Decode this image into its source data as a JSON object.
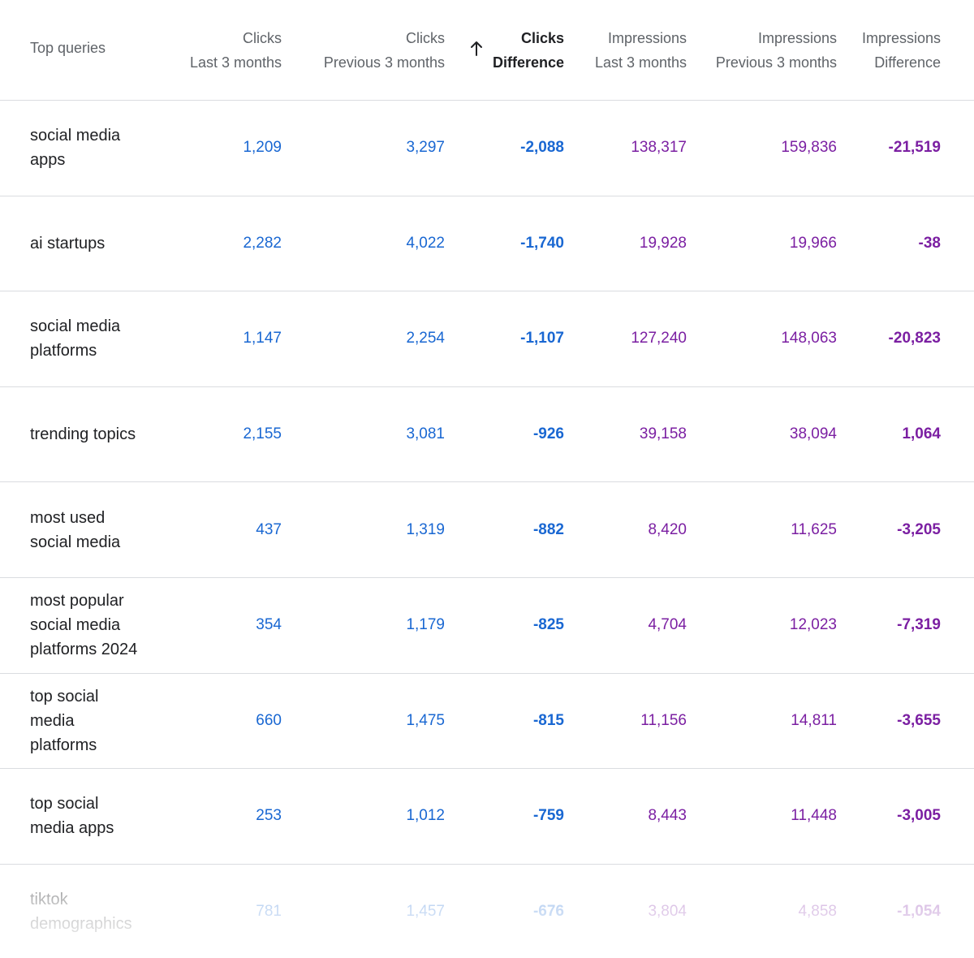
{
  "header": {
    "query": "Top queries",
    "clicks_last": [
      "Clicks",
      "Last 3 months"
    ],
    "clicks_prev": [
      "Clicks",
      "Previous 3 months"
    ],
    "clicks_diff": [
      "Clicks",
      "Difference"
    ],
    "impr_last": [
      "Impressions",
      "Last 3 months"
    ],
    "impr_prev": [
      "Impressions",
      "Previous 3 months"
    ],
    "impr_diff": [
      "Impressions",
      "Difference"
    ]
  },
  "sort": {
    "column": "Clicks Difference",
    "direction": "ascending",
    "icon": "arrow-up-icon"
  },
  "colors": {
    "clicks": "#1967d2",
    "impressions": "#7b1fa2",
    "divider": "#dadce0"
  },
  "rows": [
    {
      "query": [
        "social media",
        "apps"
      ],
      "clicks_last": "1,209",
      "clicks_prev": "3,297",
      "clicks_diff": "-2,088",
      "impr_last": "138,317",
      "impr_prev": "159,836",
      "impr_diff": "-21,519"
    },
    {
      "query": [
        "ai startups"
      ],
      "clicks_last": "2,282",
      "clicks_prev": "4,022",
      "clicks_diff": "-1,740",
      "impr_last": "19,928",
      "impr_prev": "19,966",
      "impr_diff": "-38"
    },
    {
      "query": [
        "social media",
        "platforms"
      ],
      "clicks_last": "1,147",
      "clicks_prev": "2,254",
      "clicks_diff": "-1,107",
      "impr_last": "127,240",
      "impr_prev": "148,063",
      "impr_diff": "-20,823"
    },
    {
      "query": [
        "trending topics"
      ],
      "clicks_last": "2,155",
      "clicks_prev": "3,081",
      "clicks_diff": "-926",
      "impr_last": "39,158",
      "impr_prev": "38,094",
      "impr_diff": "1,064"
    },
    {
      "query": [
        "most used",
        "social media"
      ],
      "clicks_last": "437",
      "clicks_prev": "1,319",
      "clicks_diff": "-882",
      "impr_last": "8,420",
      "impr_prev": "11,625",
      "impr_diff": "-3,205"
    },
    {
      "query": [
        "most popular",
        "social media",
        "platforms 2024"
      ],
      "clicks_last": "354",
      "clicks_prev": "1,179",
      "clicks_diff": "-825",
      "impr_last": "4,704",
      "impr_prev": "12,023",
      "impr_diff": "-7,319"
    },
    {
      "query": [
        "top social",
        "media",
        "platforms"
      ],
      "clicks_last": "660",
      "clicks_prev": "1,475",
      "clicks_diff": "-815",
      "impr_last": "11,156",
      "impr_prev": "14,811",
      "impr_diff": "-3,655"
    },
    {
      "query": [
        "top social",
        "media apps"
      ],
      "clicks_last": "253",
      "clicks_prev": "1,012",
      "clicks_diff": "-759",
      "impr_last": "8,443",
      "impr_prev": "11,448",
      "impr_diff": "-3,005"
    },
    {
      "query": [
        "tiktok",
        "demographics"
      ],
      "clicks_last": "781",
      "clicks_prev": "1,457",
      "clicks_diff": "-676",
      "impr_last": "3,804",
      "impr_prev": "4,858",
      "impr_diff": "-1,054"
    }
  ]
}
